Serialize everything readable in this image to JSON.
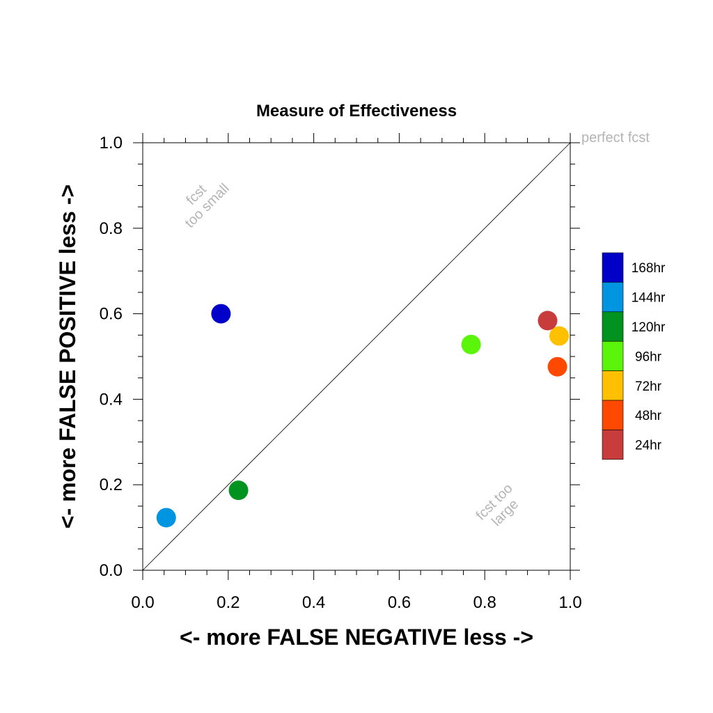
{
  "chart_data": {
    "type": "scatter",
    "title": "Measure of Effectiveness",
    "xlabel": "<- more   FALSE NEGATIVE   less ->",
    "ylabel": "<- more   FALSE POSITIVE   less ->",
    "xlim": [
      0.0,
      1.0
    ],
    "ylim": [
      0.0,
      1.0
    ],
    "xticks": [
      "0.0",
      "0.2",
      "0.4",
      "0.6",
      "0.8",
      "1.0"
    ],
    "yticks": [
      "0.0",
      "0.2",
      "0.4",
      "0.6",
      "0.8",
      "1.0"
    ],
    "grid": false,
    "diagonal_line": true,
    "annotations": {
      "perfect": "perfect fcst",
      "too_small": [
        "fcst",
        "too small"
      ],
      "too_large": [
        "fcst too",
        "large"
      ]
    },
    "legend_position": "right",
    "series": [
      {
        "name": "168hr",
        "color": "#0000c8",
        "x": 0.183,
        "y": 0.6
      },
      {
        "name": "144hr",
        "color": "#0095e0",
        "x": 0.055,
        "y": 0.123
      },
      {
        "name": "120hr",
        "color": "#009320",
        "x": 0.224,
        "y": 0.187
      },
      {
        "name": "96hr",
        "color": "#5af50a",
        "x": 0.768,
        "y": 0.528
      },
      {
        "name": "72hr",
        "color": "#ffc000",
        "x": 0.974,
        "y": 0.548
      },
      {
        "name": "48hr",
        "color": "#ff4800",
        "x": 0.97,
        "y": 0.476
      },
      {
        "name": "24hr",
        "color": "#c83c3c",
        "x": 0.947,
        "y": 0.584
      }
    ]
  }
}
